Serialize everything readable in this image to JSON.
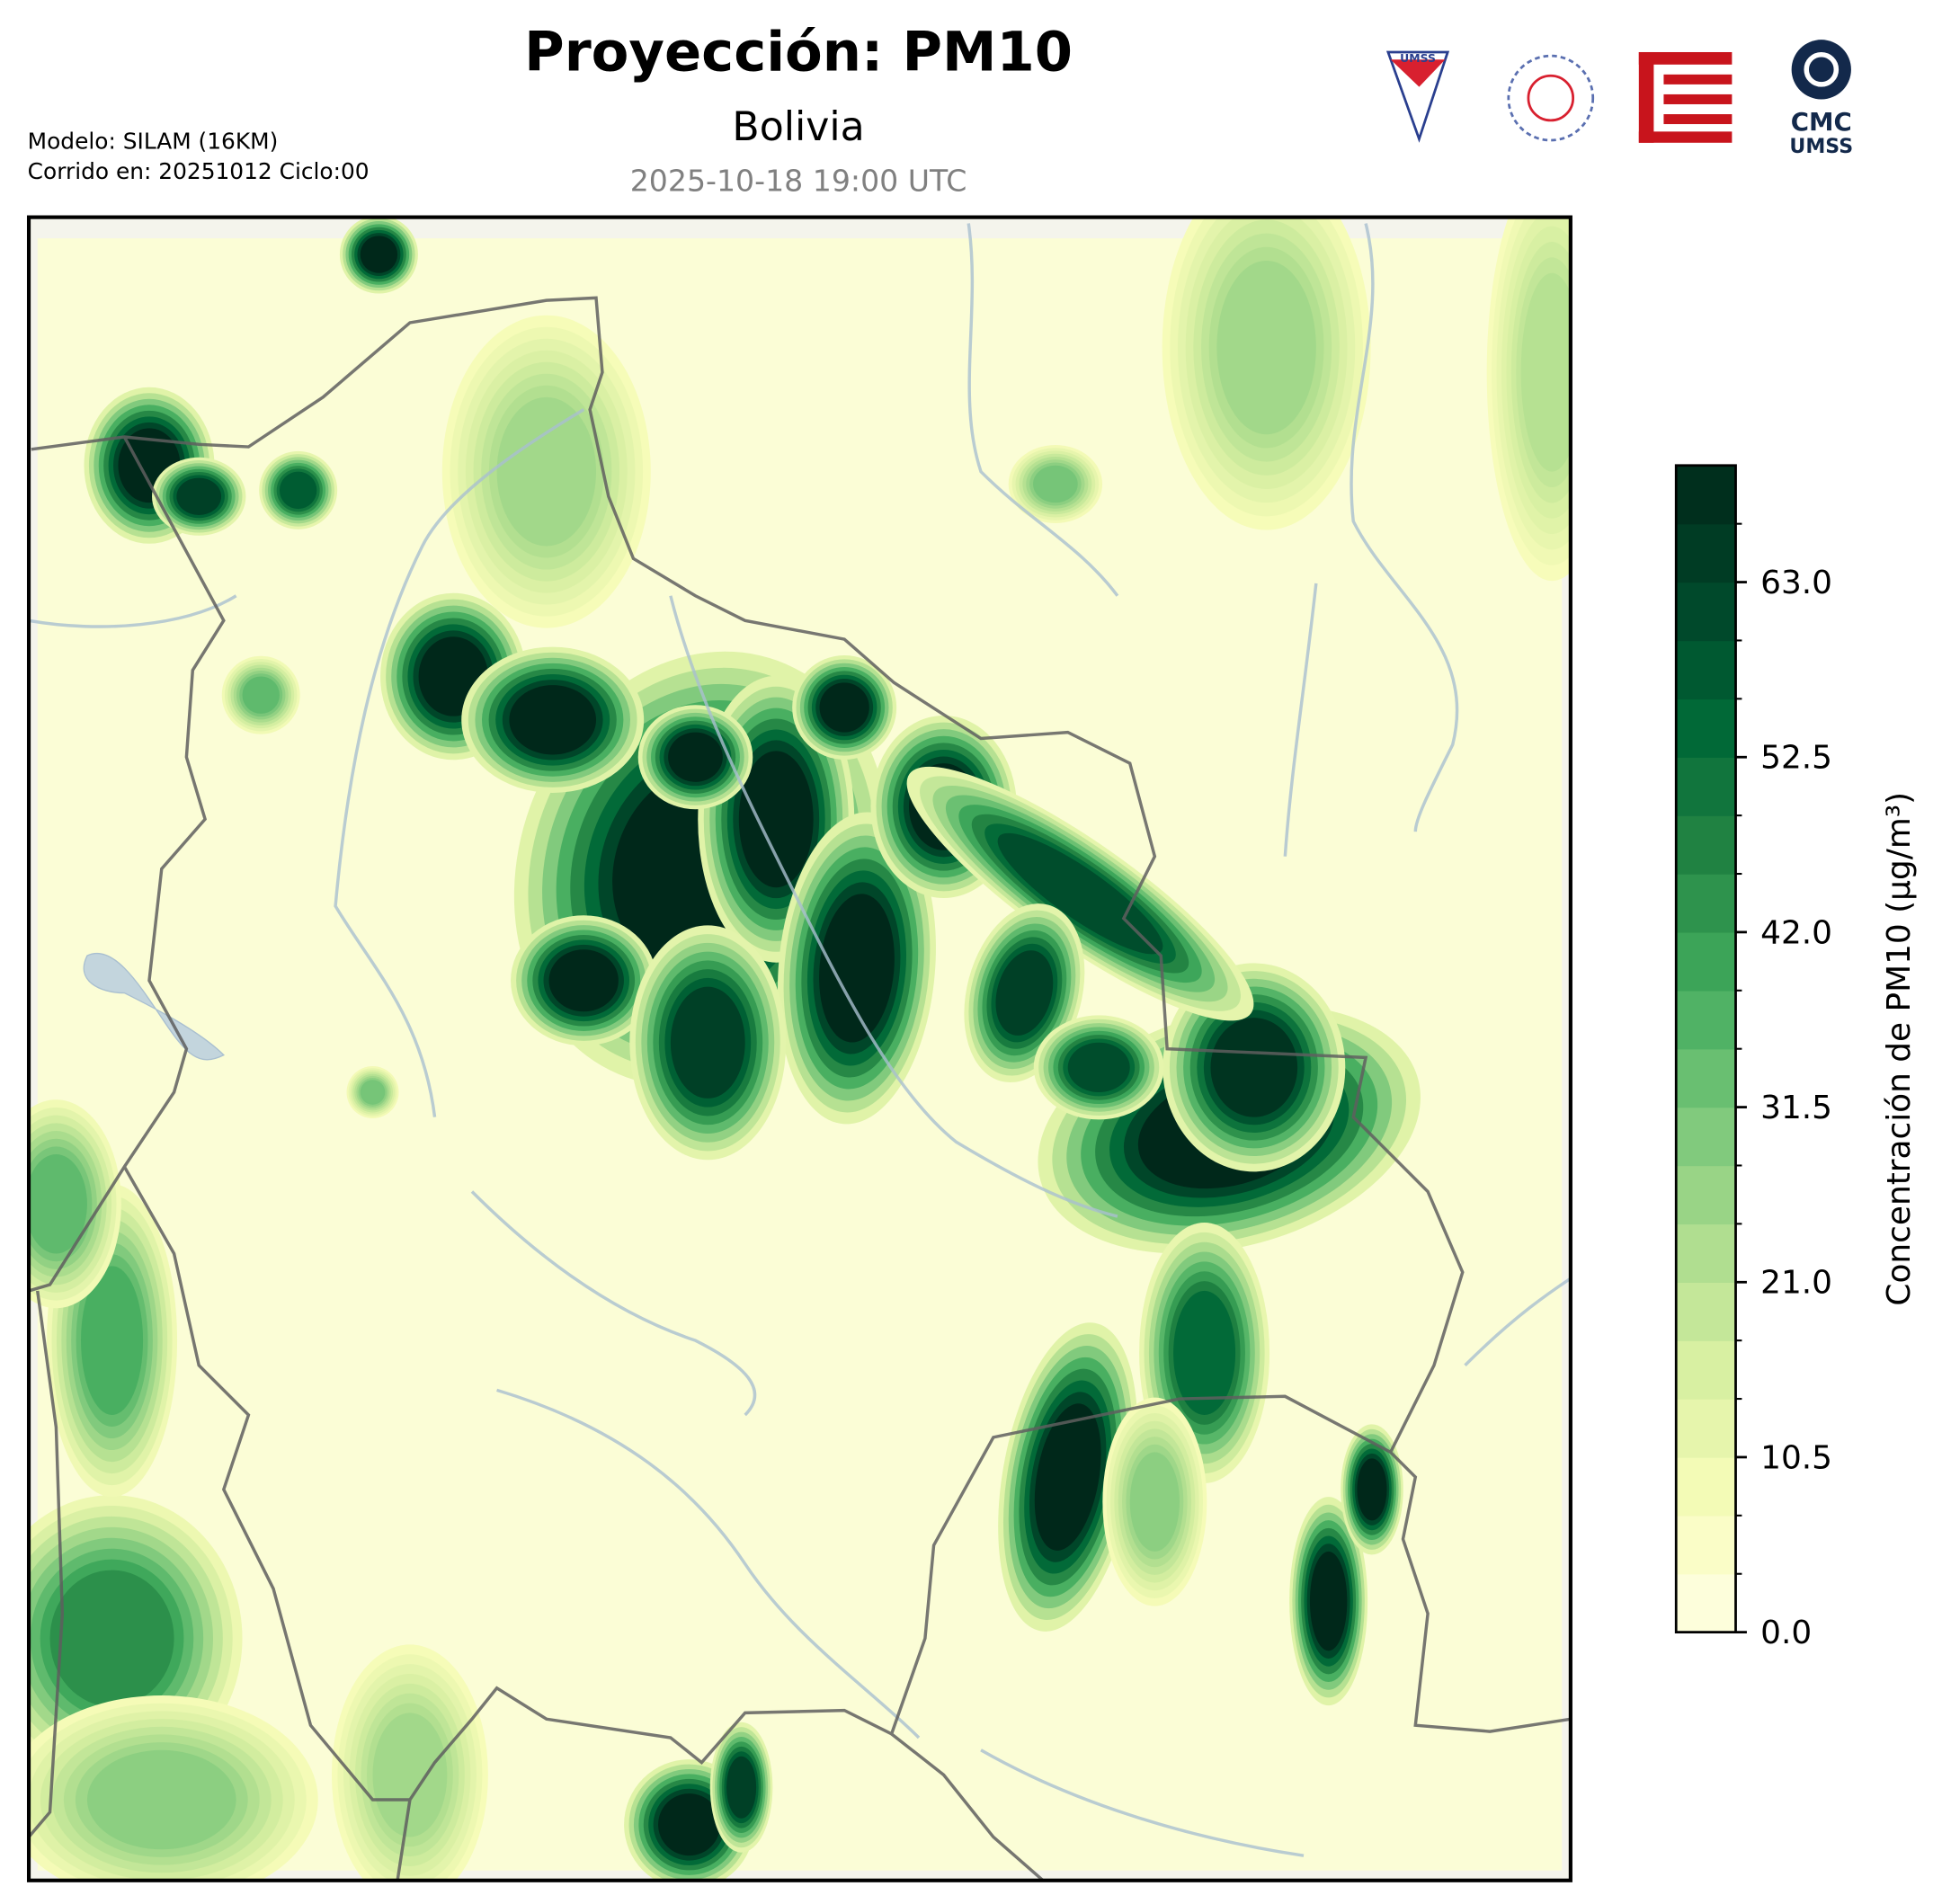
{
  "header": {
    "title": "Proyección: PM10",
    "subtitle": "Bolivia",
    "valid_time": "2025-10-18 19:00 UTC",
    "model": "Modelo: SILAM (16KM)",
    "run": "Corrido en: 20251012 Ciclo:00"
  },
  "logos": {
    "umss_shield": "UMSS",
    "cmc_line1": "CMC",
    "cmc_line2": "UMSS"
  },
  "chart_data": {
    "type": "map",
    "colorbar": {
      "label": "Concentración de PM10 (µg/m³)",
      "clim": [
        0,
        70
      ],
      "level_step": 3.5,
      "ticks": [
        {
          "value": 0,
          "label": "0.0"
        },
        {
          "value": 10.5,
          "label": "10.5"
        },
        {
          "value": 21,
          "label": "21.0"
        },
        {
          "value": 31.5,
          "label": "31.5"
        },
        {
          "value": 42,
          "label": "42.0"
        },
        {
          "value": 52.5,
          "label": "52.5"
        },
        {
          "value": 63,
          "label": "63.0"
        }
      ],
      "colormap": [
        "#ffffe5",
        "#f7fcb9",
        "#d9f0a3",
        "#addd8e",
        "#78c679",
        "#41ab5d",
        "#238443",
        "#006837",
        "#004529",
        "#00281a"
      ]
    }
  }
}
